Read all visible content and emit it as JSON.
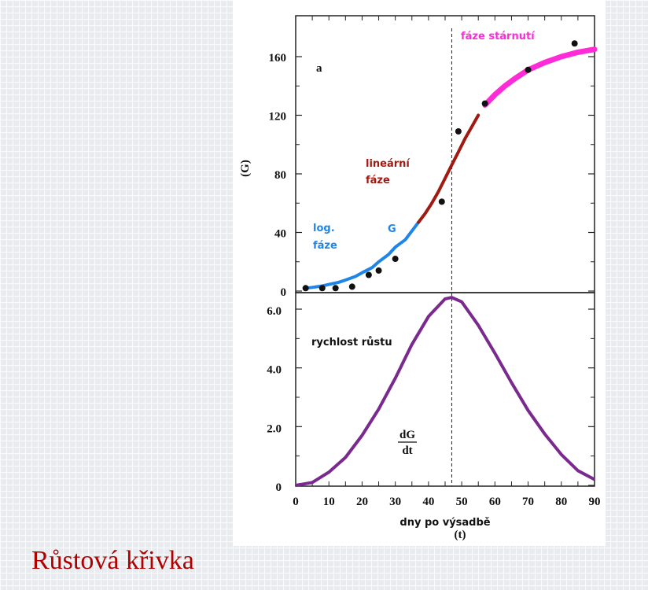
{
  "slide_title": "Růstová křivka",
  "chart_data": [
    {
      "type": "line",
      "panel": "top",
      "panel_label": "a",
      "y_axis_label": "(G)",
      "y_ticks": [
        0,
        40,
        80,
        120,
        160
      ],
      "y_tick_labels": [
        "0",
        "40",
        "80",
        "120",
        "160"
      ],
      "ylim": [
        0,
        180
      ],
      "xlim": [
        0,
        90
      ],
      "phases": [
        {
          "label_lines": [
            "log.",
            "fáze"
          ],
          "color": "#1f86e8",
          "range": [
            3,
            37
          ]
        },
        {
          "label_lines": [
            "lineární",
            "fáze"
          ],
          "color": "#a01a12",
          "range": [
            37,
            56
          ]
        },
        {
          "label_lines": [
            "fáze stárnutí"
          ],
          "color": "#ff2bd6",
          "range": [
            56,
            90
          ]
        }
      ],
      "curve_label": "G",
      "curve": {
        "x": [
          3,
          5,
          8,
          10,
          13,
          15,
          18,
          20,
          23,
          25,
          28,
          30,
          33,
          35,
          37,
          39,
          41,
          43,
          45,
          47,
          49,
          51,
          53,
          55,
          57,
          60,
          63,
          66,
          70,
          75,
          80,
          85,
          90
        ],
        "y": [
          2,
          2.5,
          3.5,
          4.5,
          6,
          7.5,
          10,
          12.5,
          16,
          20,
          25,
          30,
          35,
          41,
          47,
          53,
          60,
          68,
          77,
          86,
          95,
          104,
          112,
          120,
          127,
          134,
          140,
          145,
          151,
          156,
          160,
          163,
          165
        ]
      },
      "points": {
        "x": [
          3,
          8,
          12,
          17,
          22,
          25,
          30,
          44,
          49,
          57,
          70,
          84
        ],
        "y": [
          2,
          2,
          2,
          3,
          11,
          14,
          22,
          61,
          109,
          128,
          151,
          169
        ]
      }
    },
    {
      "type": "line",
      "panel": "bottom",
      "title": "rychlost růstu",
      "y_ticks": [
        0,
        2,
        4,
        6
      ],
      "y_tick_labels": [
        "0",
        "2.0",
        "4.0",
        "6.0"
      ],
      "ylim": [
        0,
        6.4
      ],
      "x_ticks": [
        0,
        10,
        20,
        30,
        40,
        50,
        60,
        70,
        80,
        90
      ],
      "x_tick_labels": [
        "0",
        "10",
        "20",
        "30",
        "40",
        "50",
        "60",
        "70",
        "80",
        "90"
      ],
      "xlim": [
        0,
        90
      ],
      "xlabel": "dny po výsadbě",
      "x_symbol": "(t)",
      "curve_label_num": "dG",
      "curve_label_den": "dt",
      "color": "#7a2a8e",
      "curve": {
        "x": [
          0,
          5,
          10,
          15,
          20,
          25,
          30,
          35,
          40,
          45,
          47,
          50,
          55,
          60,
          65,
          70,
          75,
          80,
          85,
          90
        ],
        "y": [
          0,
          0.1,
          0.45,
          0.95,
          1.7,
          2.6,
          3.65,
          4.8,
          5.75,
          6.35,
          6.4,
          6.25,
          5.45,
          4.5,
          3.5,
          2.55,
          1.75,
          1.05,
          0.5,
          0.2
        ]
      }
    }
  ],
  "peak_x": 47
}
